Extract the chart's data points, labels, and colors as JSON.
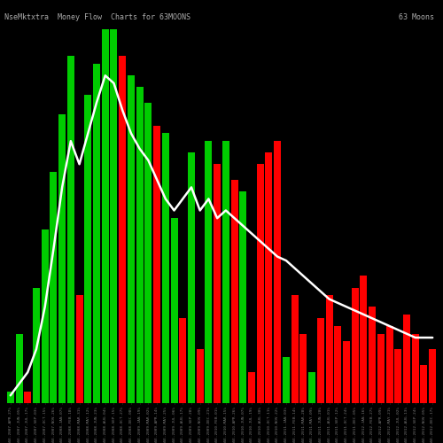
{
  "title": "NseMktxtra  Money Flow  Charts for 63MOONS",
  "subtitle_right": "63 Moons",
  "background_color": "#000000",
  "bar_colors": [
    "#00cc00",
    "#00cc00",
    "#ff0000",
    "#00cc00",
    "#00cc00",
    "#00cc00",
    "#00cc00",
    "#00cc00",
    "#ff0000",
    "#00cc00",
    "#00cc00",
    "#00cc00",
    "#00cc00",
    "#ff0000",
    "#00cc00",
    "#00cc00",
    "#00cc00",
    "#ff0000",
    "#00cc00",
    "#00cc00",
    "#ff0000",
    "#00cc00",
    "#ff0000",
    "#00cc00",
    "#ff0000",
    "#00cc00",
    "#ff0000",
    "#00cc00",
    "#ff0000",
    "#ff0000",
    "#ff0000",
    "#ff0000",
    "#00cc00",
    "#ff0000",
    "#ff0000",
    "#00cc00",
    "#ff0000",
    "#ff0000",
    "#ff0000",
    "#ff0000",
    "#ff0000",
    "#ff0000",
    "#ff0000",
    "#ff0000",
    "#ff0000",
    "#ff0000",
    "#ff0000",
    "#ff0000",
    "#ff0000",
    "#ff0000"
  ],
  "bar_heights": [
    3,
    18,
    3,
    30,
    45,
    60,
    75,
    90,
    28,
    80,
    88,
    97,
    97,
    90,
    85,
    82,
    78,
    72,
    70,
    48,
    22,
    65,
    14,
    68,
    62,
    68,
    58,
    55,
    8,
    62,
    65,
    68,
    12,
    28,
    18,
    8,
    22,
    28,
    20,
    16,
    30,
    33,
    25,
    18,
    20,
    14,
    23,
    18,
    10,
    14
  ],
  "line_values": [
    2,
    5,
    8,
    14,
    25,
    40,
    56,
    68,
    62,
    70,
    78,
    85,
    83,
    76,
    70,
    66,
    63,
    58,
    53,
    50,
    53,
    56,
    50,
    53,
    48,
    50,
    48,
    46,
    44,
    42,
    40,
    38,
    37,
    35,
    33,
    31,
    29,
    27,
    26,
    25,
    24,
    23,
    22,
    21,
    20,
    19,
    18,
    17,
    17,
    17
  ],
  "line_color": "#ffffff",
  "line_width": 1.8,
  "num_bars": 50,
  "ylim_max": 100,
  "title_color": "#aaaaaa",
  "title_fontsize": 6,
  "x_tick_color": "#777777",
  "x_tick_fontsize": 3.2,
  "labels": [
    "NSE-2007-APR-27%",
    "NSE-2007-JUN-05%",
    "NSE-2007-JUL-17%",
    "NSE-2007-SEP-03%",
    "NSE-2007-OCT-15%",
    "NSE-2007-NOV-26%",
    "NSE-2008-JAN-07%",
    "NSE-2008-FEB-18%",
    "NSE-2008-MAR-31%",
    "NSE-2008-MAY-12%",
    "NSE-2008-JUN-23%",
    "NSE-2008-AUG-04%",
    "NSE-2008-SEP-15%",
    "NSE-2008-OCT-27%",
    "NSE-2008-DEC-08%",
    "NSE-2009-JAN-19%",
    "NSE-2009-MAR-02%",
    "NSE-2009-APR-14%",
    "NSE-2009-MAY-25%",
    "NSE-2009-JUL-06%",
    "NSE-2009-AUG-17%",
    "NSE-2009-SEP-28%",
    "NSE-2009-NOV-09%",
    "NSE-2009-DEC-21%",
    "NSE-2010-FEB-01%",
    "NSE-2010-MAR-15%",
    "NSE-2010-APR-26%",
    "NSE-2010-JUN-07%",
    "NSE-2010-JUL-19%",
    "NSE-2010-AUG-30%",
    "NSE-2010-OCT-11%",
    "NSE-2010-NOV-22%",
    "NSE-2011-JAN-03%",
    "NSE-2011-FEB-14%",
    "NSE-2011-MAR-28%",
    "NSE-2011-MAY-09%",
    "NSE-2011-JUN-20%",
    "NSE-2011-AUG-01%",
    "NSE-2011-SEP-12%",
    "NSE-2011-OCT-24%",
    "NSE-2011-DEC-05%",
    "NSE-2012-JAN-16%",
    "NSE-2012-FEB-27%",
    "NSE-2012-APR-09%",
    "NSE-2012-MAY-21%",
    "NSE-2012-JUL-02%",
    "NSE-2012-AUG-13%",
    "NSE-2012-SEP-24%",
    "NSE-2012-NOV-05%",
    "NSE-2012-DEC-17%"
  ]
}
